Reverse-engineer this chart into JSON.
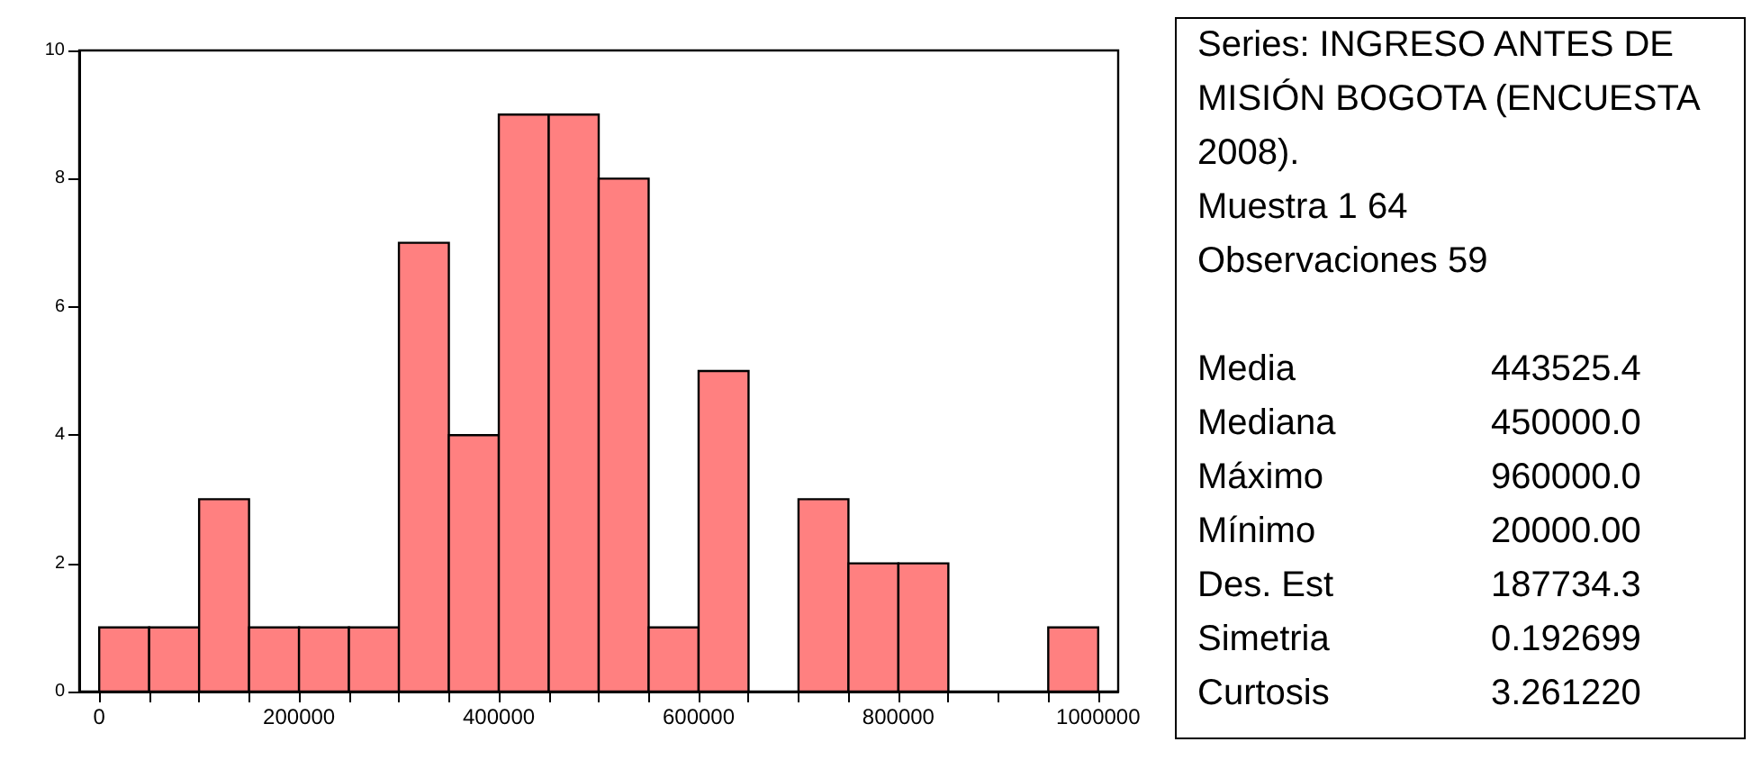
{
  "chart_data": {
    "type": "histogram",
    "color": "#ff8080",
    "bins": [
      0,
      50000,
      100000,
      150000,
      200000,
      250000,
      300000,
      350000,
      400000,
      450000,
      500000,
      550000,
      600000,
      650000,
      700000,
      750000,
      800000,
      850000,
      900000,
      950000,
      1000000
    ],
    "values": [
      1,
      1,
      3,
      1,
      1,
      1,
      7,
      4,
      9,
      9,
      8,
      1,
      5,
      0,
      3,
      2,
      2,
      0,
      0,
      1
    ],
    "xlim": [
      -20000,
      1020000
    ],
    "xticks": [
      0,
      {
        "value": 50000,
        "label": null
      },
      {
        "value": 100000,
        "label": null
      },
      {
        "value": 150000,
        "label": null
      },
      200000,
      {
        "value": 250000,
        "label": null
      },
      {
        "value": 300000,
        "label": null
      },
      {
        "value": 350000,
        "label": null
      },
      400000,
      {
        "value": 450000,
        "label": null
      },
      {
        "value": 500000,
        "label": null
      },
      {
        "value": 550000,
        "label": null
      },
      600000,
      {
        "value": 650000,
        "label": null
      },
      {
        "value": 700000,
        "label": null
      },
      {
        "value": 750000,
        "label": null
      },
      800000,
      {
        "value": 850000,
        "label": null
      },
      {
        "value": 900000,
        "label": null
      },
      {
        "value": 950000,
        "label": null
      },
      1000000
    ],
    "ylim": [
      0,
      10
    ],
    "yticks": [
      0,
      2,
      4,
      6,
      8,
      10
    ],
    "grid": false,
    "annotations": [
      "Series: INGRESO ANTES DE MISIÓN BOGOTA (ENCUESTA 2008).",
      "Muestra 1 64",
      "Observaciones 59",
      "Media",
      "443525.4",
      "Mediana",
      "450000.0",
      "Máximo",
      "960000.0",
      "Mínimo",
      "20000.00",
      "Des. Est",
      "187734.3",
      "Simetria",
      "0.192699",
      "Curtosis",
      "3.261220"
    ]
  }
}
